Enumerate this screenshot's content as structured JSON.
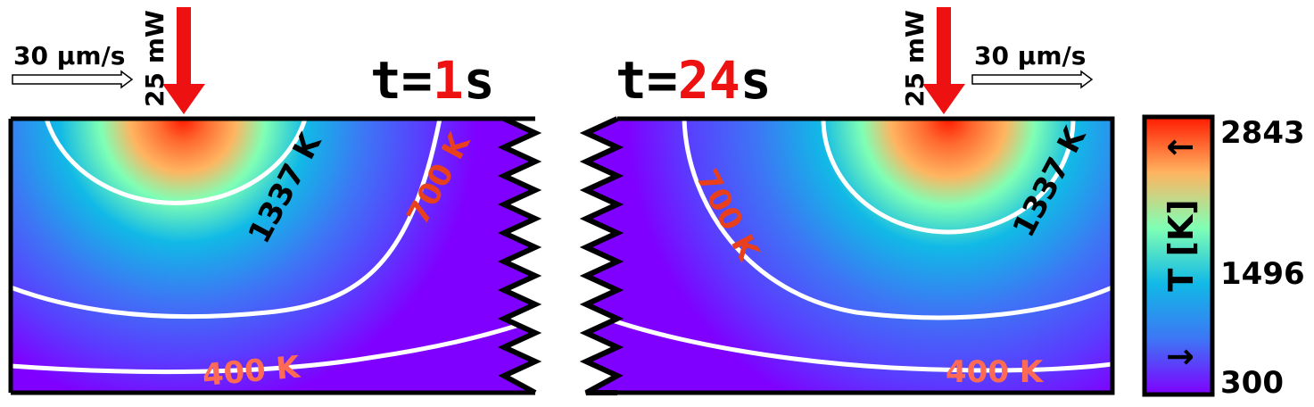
{
  "left_panel": {
    "time_prefix": "t=",
    "time_value": "1",
    "time_unit": "s",
    "speed_label": "30 µm/s",
    "power_label": "25 mW",
    "contours": {
      "c1337": "1337 K",
      "c700": "700 K",
      "c400": "400 K"
    }
  },
  "right_panel": {
    "time_prefix": "t=",
    "time_value": "24",
    "time_unit": "s",
    "speed_label": "30 µm/s",
    "power_label": "25 mW",
    "contours": {
      "c1337": "1337 K",
      "c700": "700 K",
      "c400": "400 K"
    }
  },
  "colorbar": {
    "label": "T [K]",
    "ticks": [
      "2843",
      "1496",
      "300"
    ],
    "up_arrow": "↑",
    "down_arrow": "↓"
  },
  "colors": {
    "laser_arrow": "#ee1111",
    "time_highlight": "#ee1111",
    "label_700": "#e8401c",
    "label_400": "#ff6a55",
    "contour_line": "#ffffff",
    "colormap": [
      "#7f00ff",
      "#3d76f5",
      "#11b9e6",
      "#80ffb4",
      "#ffb460",
      "#ff1a00"
    ]
  }
}
